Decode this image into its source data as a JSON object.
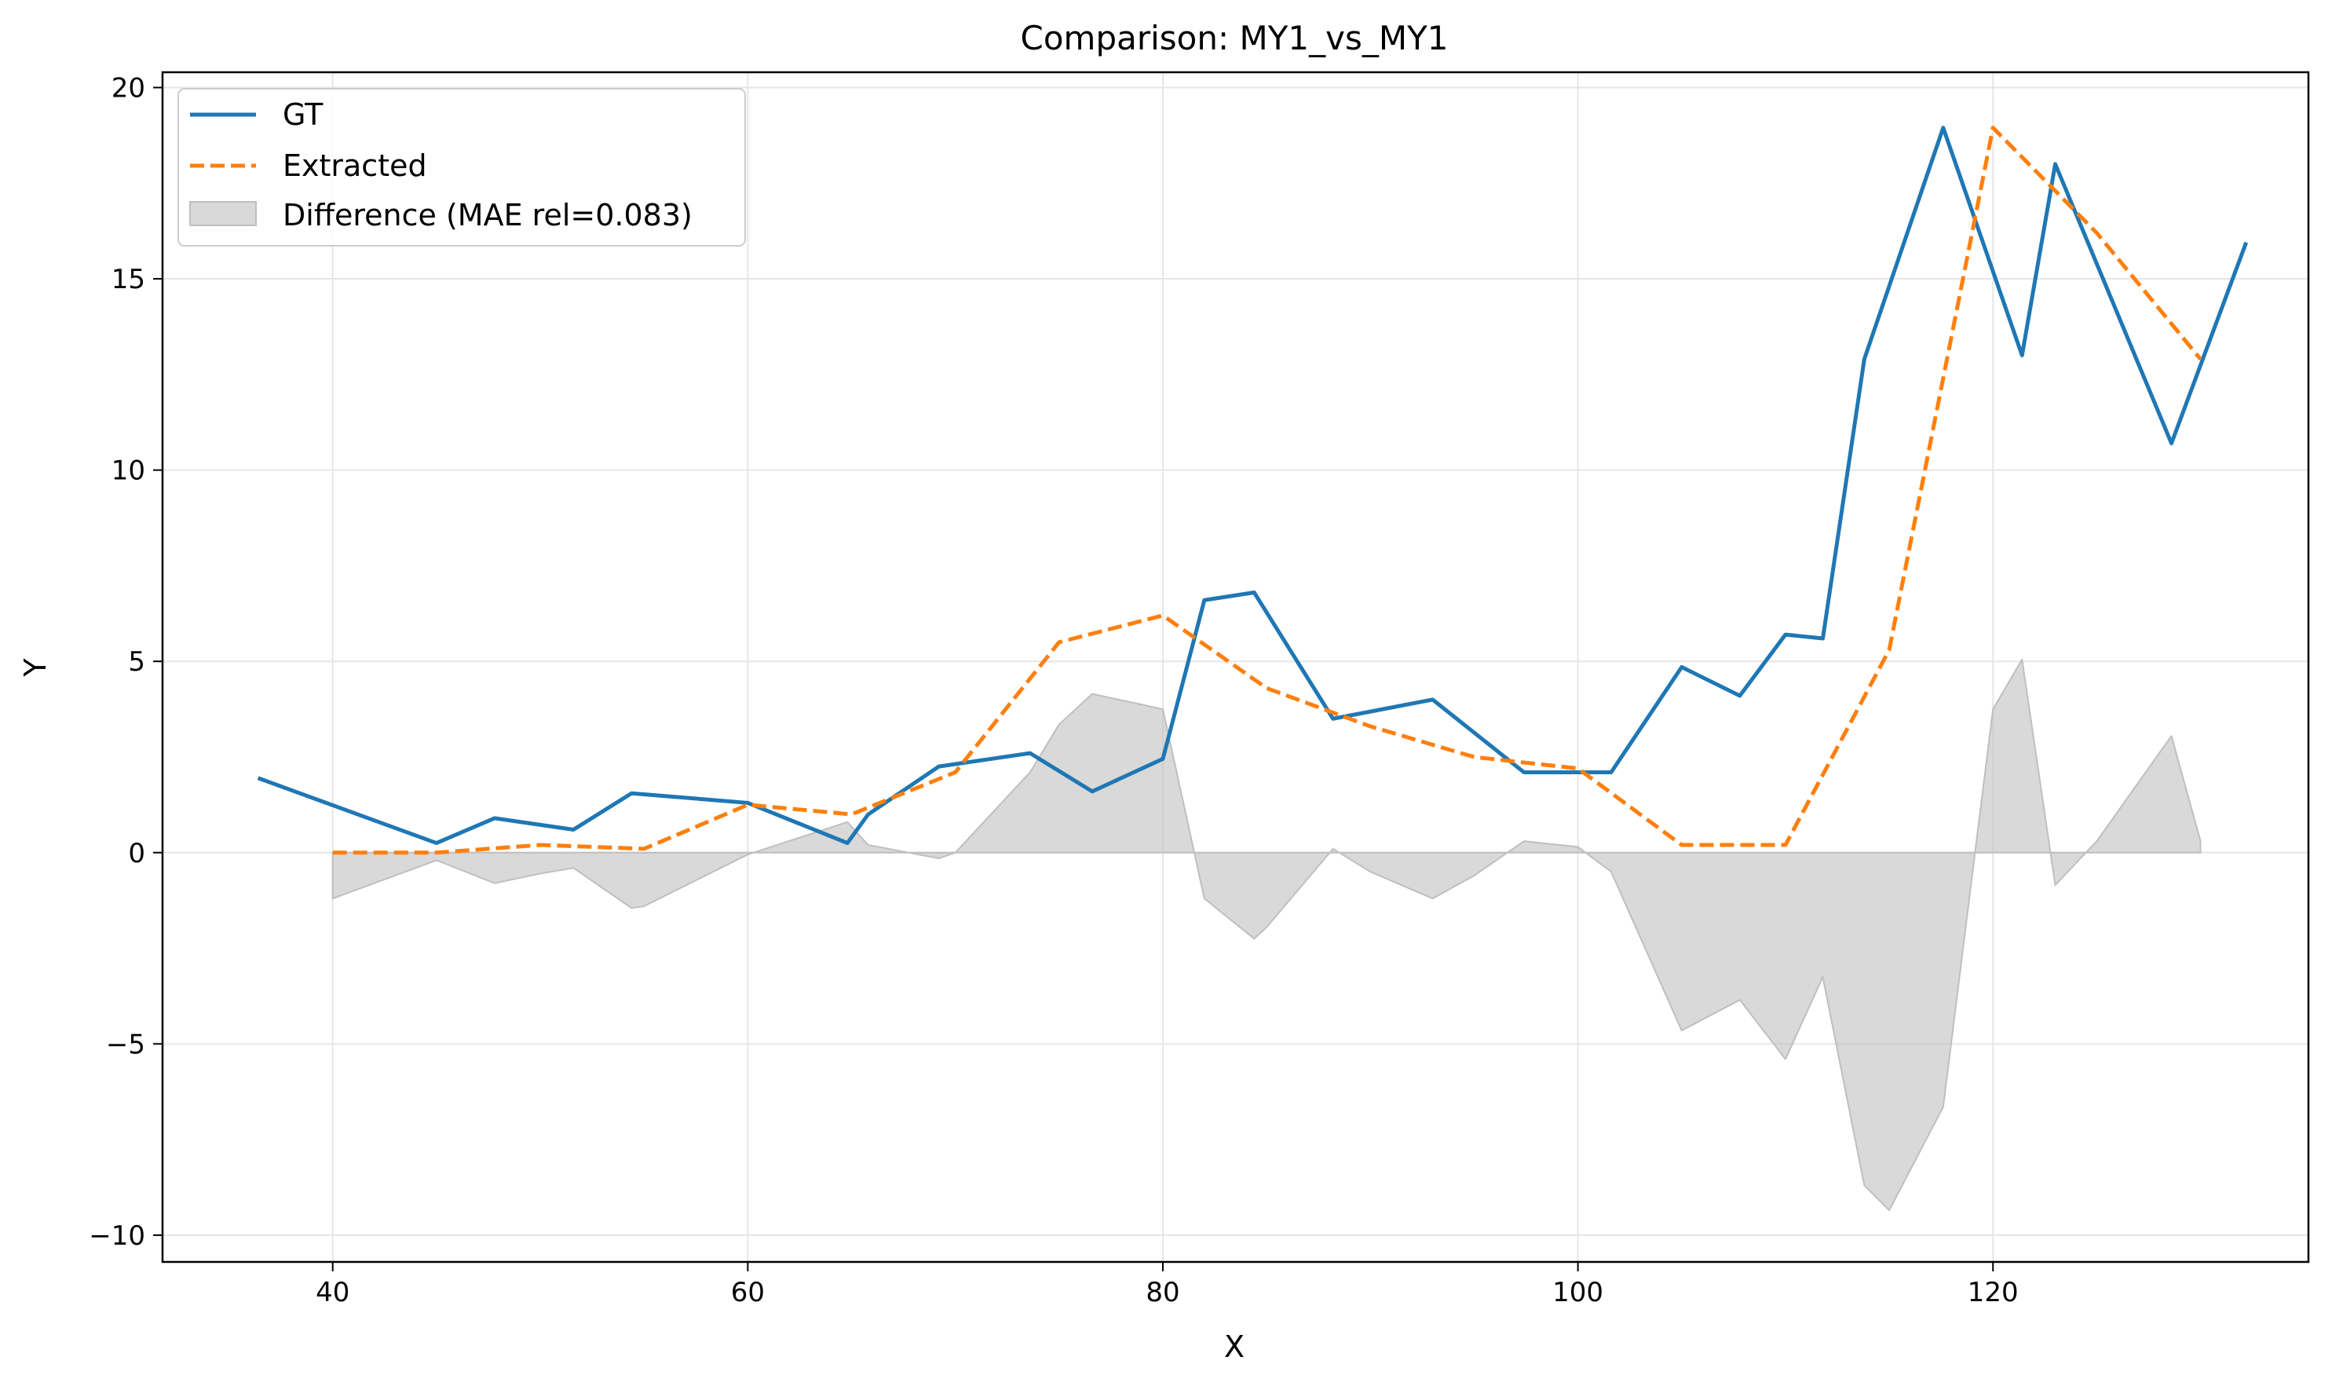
{
  "chart_data": {
    "type": "line",
    "title": "Comparison: MY1_vs_MY1",
    "xlabel": "X",
    "ylabel": "Y",
    "xlim": [
      31.8,
      135.2
    ],
    "ylim": [
      -10.7,
      20.4
    ],
    "xticks": [
      40,
      60,
      80,
      100,
      120
    ],
    "xtick_labels": [
      "40",
      "60",
      "80",
      "100",
      "120"
    ],
    "yticks": [
      -10,
      -5,
      0,
      5,
      10,
      15,
      20
    ],
    "ytick_labels": [
      "−10",
      "−5",
      "0",
      "5",
      "10",
      "15",
      "20"
    ],
    "grid": true,
    "legend_position": "top-left",
    "series": [
      {
        "name": "GT",
        "style": "solid",
        "color": "#1f77b4",
        "x": [
          36.4,
          45.0,
          47.8,
          51.6,
          54.4,
          60.0,
          64.8,
          65.8,
          69.2,
          73.6,
          76.6,
          80.0,
          82.0,
          84.4,
          88.2,
          93.0,
          97.4,
          101.6,
          105.0,
          107.8,
          110.0,
          111.8,
          113.8,
          117.6,
          121.4,
          123.0,
          128.6,
          132.2
        ],
        "y": [
          1.95,
          0.25,
          0.9,
          0.6,
          1.55,
          1.3,
          0.25,
          1.0,
          2.25,
          2.6,
          1.6,
          2.45,
          6.6,
          6.8,
          3.5,
          4.0,
          2.1,
          2.1,
          4.85,
          4.1,
          5.7,
          5.6,
          12.9,
          18.95,
          13.0,
          18.0,
          10.7,
          15.95
        ]
      },
      {
        "name": "Extracted",
        "style": "dashed",
        "color": "#ff7f0e",
        "x": [
          40.0,
          45.0,
          50.0,
          55.0,
          60.0,
          65.0,
          70.0,
          75.0,
          80.0,
          85.0,
          90.0,
          95.0,
          100.0,
          105.0,
          110.0,
          115.0,
          120.0,
          125.0,
          130.0
        ],
        "y": [
          0.0,
          0.0,
          0.2,
          0.1,
          1.25,
          1.0,
          2.1,
          5.5,
          6.2,
          4.3,
          3.3,
          2.5,
          2.2,
          0.2,
          0.2,
          5.3,
          18.95,
          16.2,
          12.9
        ]
      }
    ],
    "difference": {
      "name": "Difference (MAE rel=0.083)",
      "color": "#bfbfbf",
      "x": [
        40.0,
        45.0,
        47.8,
        50.0,
        51.6,
        54.4,
        55.0,
        60.0,
        64.8,
        65.8,
        69.2,
        70.0,
        73.6,
        75.0,
        76.6,
        80.0,
        82.0,
        84.4,
        85.0,
        88.2,
        90.0,
        93.0,
        95.0,
        97.4,
        100.0,
        101.6,
        105.0,
        107.8,
        110.0,
        111.8,
        113.8,
        115.0,
        117.6,
        120.0,
        121.4,
        123.0,
        125.0,
        128.6,
        130.0
      ],
      "y": [
        -1.2,
        -0.2,
        -0.8,
        -0.55,
        -0.4,
        -1.45,
        -1.4,
        -0.05,
        0.8,
        0.2,
        -0.15,
        0.0,
        2.1,
        3.35,
        4.15,
        3.75,
        -1.2,
        -2.25,
        -1.95,
        0.1,
        -0.5,
        -1.2,
        -0.6,
        0.3,
        0.15,
        -0.5,
        -4.65,
        -3.85,
        -5.4,
        -3.25,
        -8.7,
        -9.35,
        -6.65,
        3.75,
        5.05,
        -0.85,
        0.3,
        3.05,
        0.3
      ]
    }
  }
}
